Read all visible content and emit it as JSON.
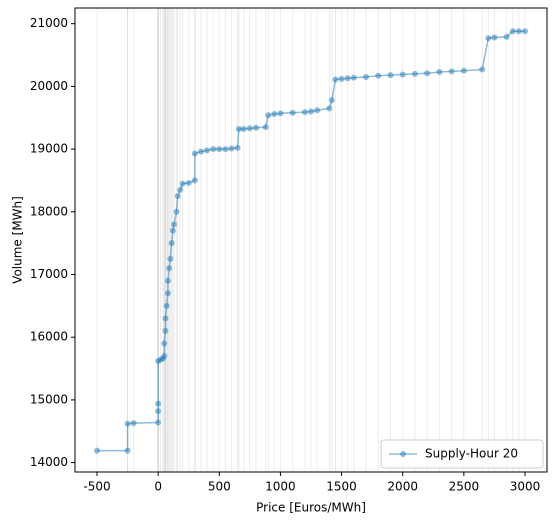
{
  "chart_data": {
    "type": "line",
    "xlabel": "Price [Euros/MWh]",
    "ylabel": "Volume [MWh]",
    "x": [
      -500,
      -250,
      -250,
      -200,
      0,
      0,
      0,
      0,
      20,
      40,
      50,
      50,
      60,
      60,
      70,
      80,
      80,
      90,
      100,
      110,
      120,
      130,
      150,
      160,
      180,
      200,
      250,
      300,
      300,
      350,
      400,
      450,
      500,
      550,
      600,
      650,
      660,
      700,
      750,
      800,
      880,
      900,
      950,
      1000,
      1100,
      1200,
      1250,
      1300,
      1400,
      1420,
      1450,
      1500,
      1550,
      1600,
      1700,
      1800,
      1900,
      2000,
      2100,
      2200,
      2300,
      2400,
      2500,
      2650,
      2700,
      2750,
      2850,
      2900,
      2950,
      3000
    ],
    "series": [
      {
        "name": "Supply-Hour 20",
        "color": "#1f77b4",
        "values": [
          14190,
          14190,
          14620,
          14630,
          14640,
          14820,
          14940,
          15620,
          15640,
          15660,
          15700,
          15900,
          16100,
          16300,
          16500,
          16700,
          16900,
          17100,
          17250,
          17500,
          17700,
          17800,
          18000,
          18250,
          18350,
          18450,
          18460,
          18500,
          18930,
          18960,
          18980,
          19000,
          19000,
          19000,
          19010,
          19020,
          19320,
          19320,
          19330,
          19340,
          19350,
          19540,
          19560,
          19570,
          19580,
          19590,
          19600,
          19620,
          19650,
          19780,
          20110,
          20120,
          20130,
          20140,
          20150,
          20170,
          20180,
          20190,
          20200,
          20210,
          20230,
          20240,
          20250,
          20270,
          20770,
          20780,
          20790,
          20880,
          20880,
          20880
        ]
      }
    ],
    "xlim": [
      -680,
      3180
    ],
    "ylim": [
      13850,
      21250
    ],
    "xticks": [
      -500,
      0,
      500,
      1000,
      1500,
      2000,
      2500,
      3000
    ],
    "yticks": [
      14000,
      15000,
      16000,
      17000,
      18000,
      19000,
      20000,
      21000
    ],
    "price_lines": true,
    "price_line_color": "#808080",
    "legend": "lower right"
  }
}
